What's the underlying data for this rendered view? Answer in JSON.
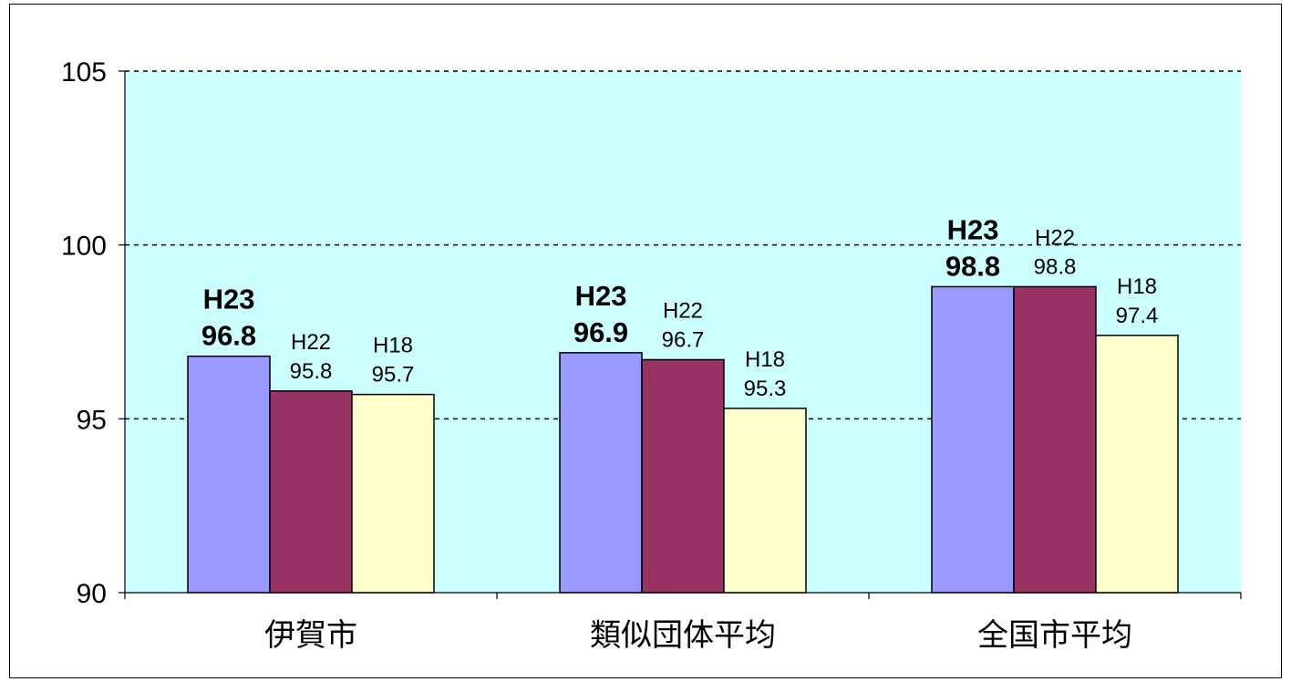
{
  "chart_data": {
    "type": "bar",
    "categories": [
      "伊賀市",
      "類似団体平均",
      "全国市平均"
    ],
    "series": [
      {
        "name": "H23",
        "values": [
          96.8,
          96.9,
          98.8
        ],
        "color": "#9999ff"
      },
      {
        "name": "H22",
        "values": [
          95.8,
          96.7,
          98.8
        ],
        "color": "#993366"
      },
      {
        "name": "H18",
        "values": [
          95.7,
          95.3,
          97.4
        ],
        "color": "#ffffcc"
      }
    ],
    "ylim": [
      90,
      105
    ],
    "yticks": [
      90,
      95,
      100,
      105
    ],
    "plot_background": "#ccffff",
    "grid": "dashed horizontal",
    "title": "",
    "xlabel": "",
    "ylabel": ""
  }
}
